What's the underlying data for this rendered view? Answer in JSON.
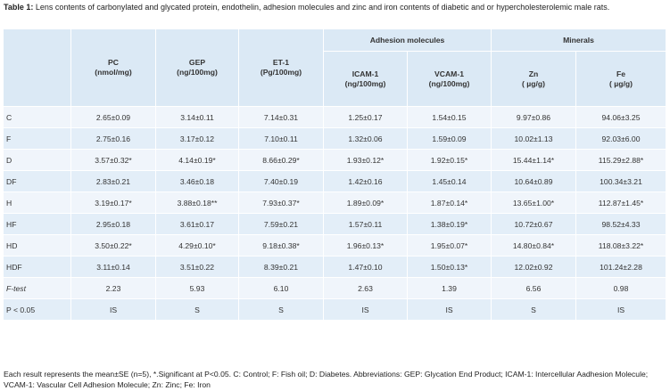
{
  "caption": {
    "label": "Table 1:",
    "text": " Lens contents of carbonylated and glycated protein, endothelin, adhesion molecules and zinc and iron contents of diabetic and or hypercholesterolemic male rats."
  },
  "table": {
    "group_headers": {
      "adhesion": "Adhesion molecules",
      "minerals": "Minerals"
    },
    "col_labels": [
      {
        "name": "PC",
        "unit": "(nmol/mg)"
      },
      {
        "name": "GEP",
        "unit": "(ng/100mg)"
      },
      {
        "name": "ET-1",
        "unit": "(Pg/100mg)"
      },
      {
        "name": "ICAM-1",
        "unit": "(ng/100mg)"
      },
      {
        "name": "VCAM-1",
        "unit": "(ng/100mg)"
      },
      {
        "name": "Zn",
        "unit": "( µg/g)"
      },
      {
        "name": "Fe",
        "unit": "( µg/g)"
      }
    ],
    "rows": [
      {
        "label": "C",
        "cells": [
          "2.65±0.09",
          "3.14±0.11",
          "7.14±0.31",
          "1.25±0.17",
          "1.54±0.15",
          "9.97±0.86",
          "94.06±3.25"
        ]
      },
      {
        "label": "F",
        "cells": [
          "2.75±0.16",
          "3.17±0.12",
          "7.10±0.11",
          "1.32±0.06",
          "1.59±0.09",
          "10.02±1.13",
          "92.03±6.00"
        ]
      },
      {
        "label": "D",
        "cells": [
          "3.57±0.32*",
          "4.14±0.19*",
          "8.66±0.29*",
          "1.93±0.12*",
          "1.92±0.15*",
          "15.44±1.14*",
          "115.29±2.88*"
        ]
      },
      {
        "label": "DF",
        "cells": [
          "2.83±0.21",
          "3.46±0.18",
          "7.40±0.19",
          "1.42±0.16",
          "1.45±0.14",
          "10.64±0.89",
          "100.34±3.21"
        ]
      },
      {
        "label": "H",
        "cells": [
          "3.19±0.17*",
          "3.88±0.18**",
          "7.93±0.37*",
          "1.89±0.09*",
          "1.87±0.14*",
          "13.65±1.00*",
          "112.87±1.45*"
        ]
      },
      {
        "label": "HF",
        "cells": [
          "2.95±0.18",
          "3.61±0.17",
          "7.59±0.21",
          "1.57±0.11",
          "1.38±0.19*",
          "10.72±0.67",
          "98.52±4.33"
        ]
      },
      {
        "label": "HD",
        "cells": [
          "3.50±0.22*",
          "4.29±0.10*",
          "9.18±0.38*",
          "1.96±0.13*",
          "1.95±0.07*",
          "14.80±0.84*",
          "118.08±3.22*"
        ]
      },
      {
        "label": "HDF",
        "cells": [
          "3.11±0.14",
          "3.51±0.22",
          "8.39±0.21",
          "1.47±0.10",
          "1.50±0.13*",
          "12.02±0.92",
          "101.24±2.28"
        ]
      },
      {
        "label": "F-test",
        "cells": [
          "2.23",
          "5.93",
          "6.10",
          "2.63",
          "1.39",
          "6.56",
          "0.98"
        ]
      },
      {
        "label": "P < 0.05",
        "cells": [
          "IS",
          "S",
          "S",
          "IS",
          "IS",
          "S",
          "IS"
        ]
      }
    ]
  },
  "footnote": "Each result represents the mean±SE (n=5), *.Significant at P<0.05. C: Control; F: Fish oil; D: Diabetes. Abbreviations: GEP: Glycation End Product; ICAM-1: Intercellular Aadhesion Molecule; VCAM-1: Vascular Cell Adhesion Molecule; Zn: Zinc; Fe: Iron"
}
